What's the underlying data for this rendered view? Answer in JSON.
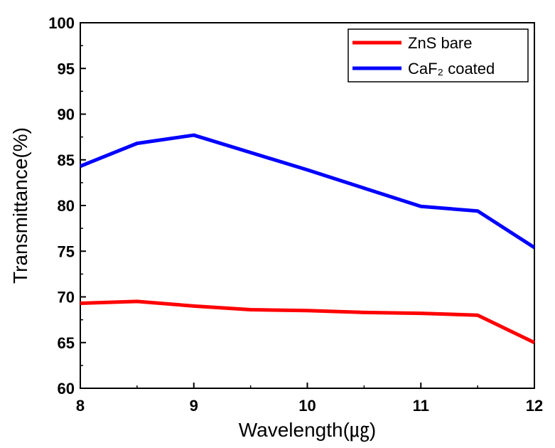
{
  "chart_data": {
    "type": "line",
    "xlabel": "Wavelength(㎍)",
    "ylabel": "Transmittance(%)",
    "xlim": [
      8,
      12
    ],
    "ylim": [
      60,
      100
    ],
    "xticks": [
      "8",
      "9",
      "10",
      "11",
      "12"
    ],
    "yticks": [
      "60",
      "65",
      "70",
      "75",
      "80",
      "85",
      "90",
      "95",
      "100"
    ],
    "grid": false,
    "legend_position": "top-right",
    "series": [
      {
        "name": "ZnS bare",
        "color": "#ff0000",
        "x": [
          8,
          8.5,
          9,
          9.5,
          10,
          10.5,
          11,
          11.5,
          12
        ],
        "y": [
          69.3,
          69.5,
          69.0,
          68.6,
          68.5,
          68.3,
          68.2,
          68.0,
          65.0
        ]
      },
      {
        "name": "CaF₂ coated",
        "color": "#0000ff",
        "x": [
          8,
          8.5,
          9,
          9.5,
          10,
          10.5,
          11,
          11.5,
          12
        ],
        "y": [
          84.3,
          86.8,
          87.7,
          85.8,
          83.9,
          81.9,
          79.9,
          79.4,
          75.4
        ]
      }
    ]
  }
}
